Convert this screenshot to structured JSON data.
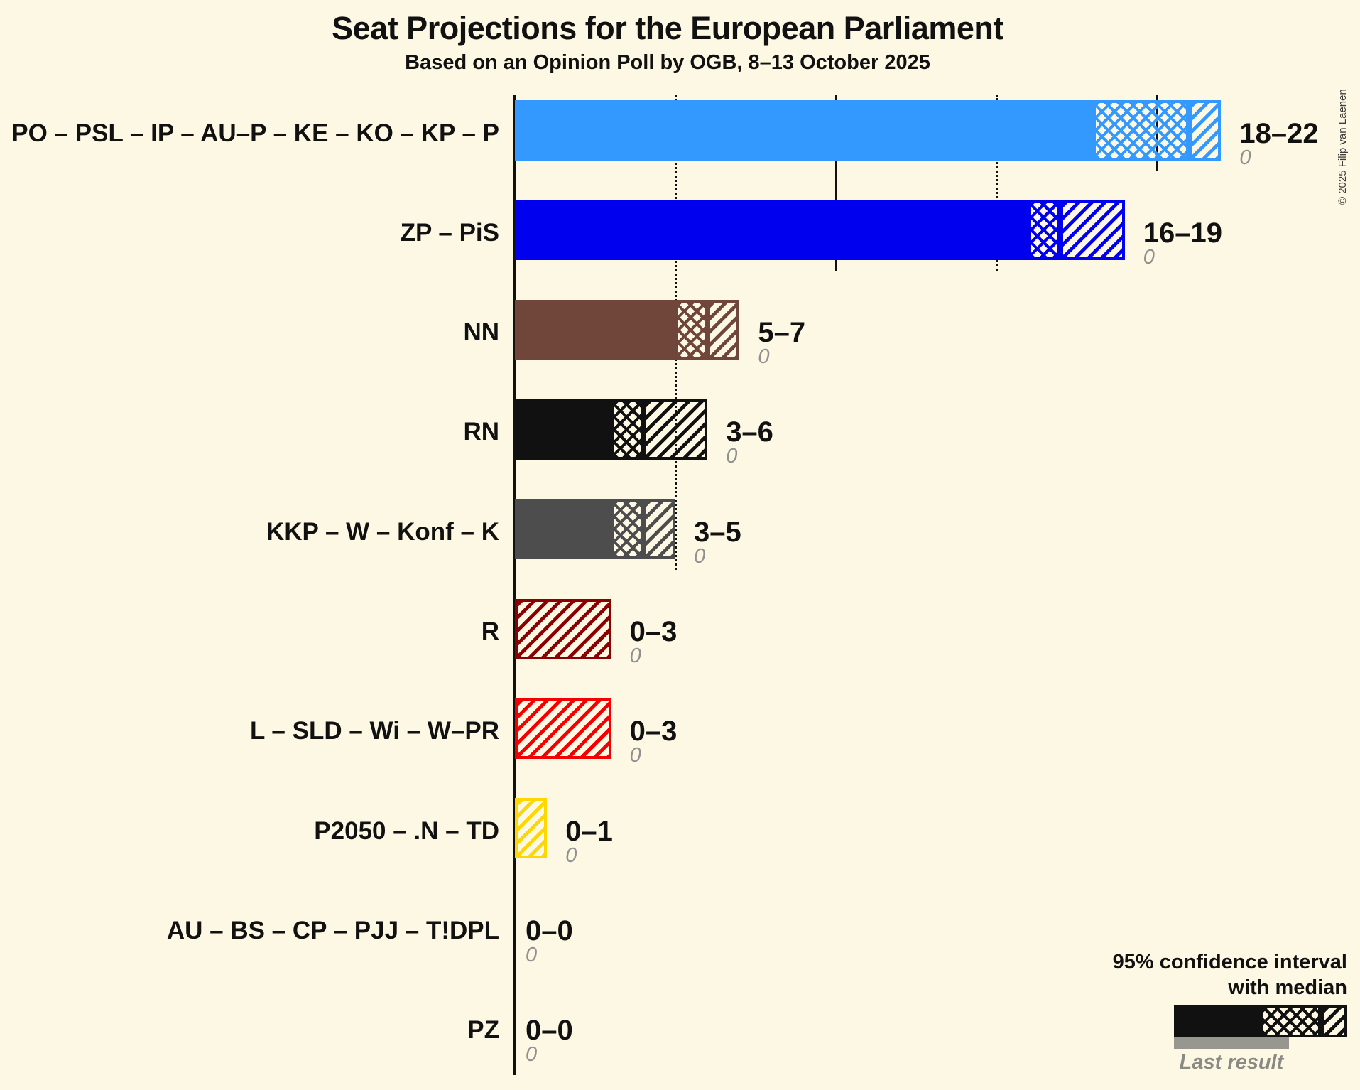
{
  "colors": {
    "background": "#fcf8e3",
    "axis": "#111111",
    "value_text": "#111111",
    "last_result_text": "#909090",
    "last_result_bar": "#97978f",
    "legend_sample": "#111111"
  },
  "copyright": "© 2025 Filip van Laenen",
  "legend": {
    "ci_line1": "95% confidence interval",
    "ci_line2": "with median",
    "last_result_label": "Last result"
  },
  "chart_data": {
    "type": "bar",
    "orientation": "horizontal",
    "unit": "seats",
    "title": "Seat Projections for the European Parliament",
    "subtitle": "Based on an Opinion Poll by OGB, 8–13 October 2025",
    "x_axis": {
      "min": 0,
      "max": 22,
      "gridlines": [
        {
          "seats": 5,
          "style": "dotted"
        },
        {
          "seats": 10,
          "style": "solid"
        },
        {
          "seats": 15,
          "style": "dotted"
        },
        {
          "seats": 20,
          "style": "solid"
        }
      ]
    },
    "bars": [
      {
        "party": "PO – PSL – IP – AU–P – KE – KO – KP – P",
        "color": "#3399ff",
        "ci_low": 18,
        "median": 21,
        "ci_high": 22,
        "value_label": "18–22",
        "last_result": 0,
        "last_result_label": "0"
      },
      {
        "party": "ZP – PiS",
        "color": "#0000ee",
        "ci_low": 16,
        "median": 17,
        "ci_high": 19,
        "value_label": "16–19",
        "last_result": 0,
        "last_result_label": "0"
      },
      {
        "party": "NN",
        "color": "#70453a",
        "ci_low": 5,
        "median": 6,
        "ci_high": 7,
        "value_label": "5–7",
        "last_result": 0,
        "last_result_label": "0"
      },
      {
        "party": "RN",
        "color": "#111111",
        "ci_low": 3,
        "median": 4,
        "ci_high": 6,
        "value_label": "3–6",
        "last_result": 0,
        "last_result_label": "0"
      },
      {
        "party": "KKP – W – Konf – K",
        "color": "#4d4d4d",
        "ci_low": 3,
        "median": 4,
        "ci_high": 5,
        "value_label": "3–5",
        "last_result": 0,
        "last_result_label": "0"
      },
      {
        "party": "R",
        "color": "#8b0000",
        "ci_low": 0,
        "median": 0,
        "ci_high": 3,
        "value_label": "0–3",
        "last_result": 0,
        "last_result_label": "0"
      },
      {
        "party": "L – SLD – Wi – W–PR",
        "color": "#f50000",
        "ci_low": 0,
        "median": 0,
        "ci_high": 3,
        "value_label": "0–3",
        "last_result": 0,
        "last_result_label": "0"
      },
      {
        "party": "P2050 – .N – TD",
        "color": "#ffd700",
        "ci_low": 0,
        "median": 0,
        "ci_high": 1,
        "value_label": "0–1",
        "last_result": 0,
        "last_result_label": "0"
      },
      {
        "party": "AU – BS – CP – PJJ – T!DPL",
        "color": "#111111",
        "ci_low": 0,
        "median": 0,
        "ci_high": 0,
        "value_label": "0–0",
        "last_result": 0,
        "last_result_label": "0"
      },
      {
        "party": "PZ",
        "color": "#111111",
        "ci_low": 0,
        "median": 0,
        "ci_high": 0,
        "value_label": "0–0",
        "last_result": 0,
        "last_result_label": "0"
      }
    ]
  }
}
